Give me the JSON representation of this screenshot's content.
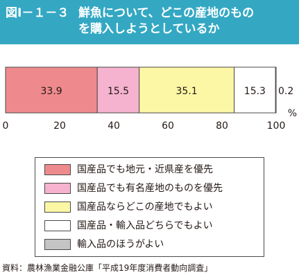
{
  "figure": {
    "number": "図Ⅰ－１－３",
    "title": "鮮魚について、どこの産地のもの\nを購入しようとしているか"
  },
  "chart_data": {
    "type": "bar",
    "orientation": "horizontal-stacked-100",
    "title": "鮮魚について、どこの産地のものを購入しようとしているか",
    "xlabel": "",
    "ylabel": "",
    "unit": "%",
    "xlim": [
      0,
      100
    ],
    "xticks": [
      0,
      20,
      40,
      60,
      80,
      100
    ],
    "grid": false,
    "legend_position": "bottom",
    "series": [
      {
        "name": "国産品でも地元・近県産を優先",
        "value": 33.9,
        "label": "33.9",
        "color": "#ee8a8d"
      },
      {
        "name": "国産品でも有名産地のものを優先",
        "value": 15.5,
        "label": "15.5",
        "color": "#f5b3cf"
      },
      {
        "name": "国産品ならどこの産地でもよい",
        "value": 35.1,
        "label": "35.1",
        "color": "#fcf7a5"
      },
      {
        "name": "国産品・輸入品どちらでもよい",
        "value": 15.3,
        "label": "15.3",
        "color": "#ffffff"
      },
      {
        "name": "輸入品のほうがよい",
        "value": 0.2,
        "label": "0.2",
        "color": "#c4c4c4"
      }
    ]
  },
  "source": "資料：農林漁業金融公庫「平成19年度消費者動向調査」"
}
